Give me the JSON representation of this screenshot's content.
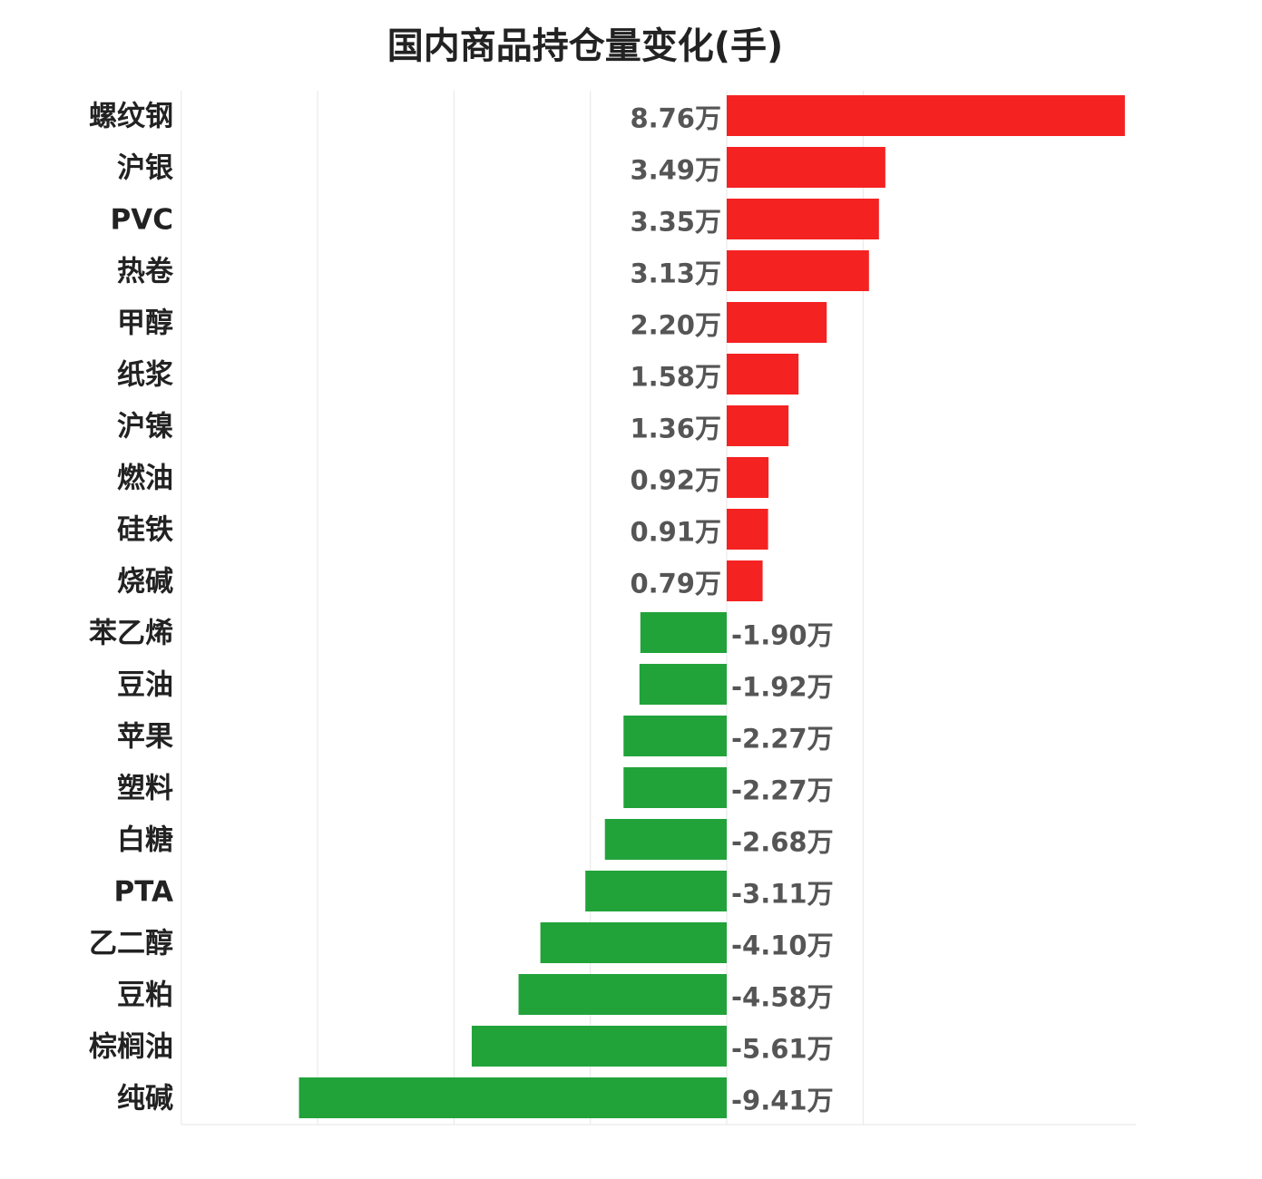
{
  "chart_data": {
    "type": "bar",
    "orientation": "horizontal",
    "title": "国内商品持仓量变化(手)",
    "xlabel": "",
    "ylabel": "",
    "unit_suffix": "万",
    "xlim": [
      -12,
      3
    ],
    "grid": true,
    "categories": [
      "螺纹钢",
      "沪银",
      "PVC",
      "热卷",
      "甲醇",
      "纸浆",
      "沪镍",
      "燃油",
      "硅铁",
      "烧碱",
      "苯乙烯",
      "豆油",
      "苹果",
      "塑料",
      "白糖",
      "PTA",
      "乙二醇",
      "豆粕",
      "棕榈油",
      "纯碱"
    ],
    "values": [
      8.76,
      3.49,
      3.35,
      3.13,
      2.2,
      1.58,
      1.36,
      0.92,
      0.91,
      0.79,
      -1.9,
      -1.92,
      -2.27,
      -2.27,
      -2.68,
      -3.11,
      -4.1,
      -4.58,
      -5.61,
      -9.41
    ],
    "value_labels": [
      "8.76万",
      "3.49万",
      "3.35万",
      "3.13万",
      "2.20万",
      "1.58万",
      "1.36万",
      "0.92万",
      "0.91万",
      "0.79万",
      "-1.90万",
      "-1.92万",
      "-2.27万",
      "-2.27万",
      "-2.68万",
      "-3.11万",
      "-4.10万",
      "-4.58万",
      "-5.61万",
      "-9.41万"
    ],
    "colors": {
      "positive": "#f52222",
      "negative": "#21a33a",
      "grid": "#e6e6e6"
    }
  }
}
